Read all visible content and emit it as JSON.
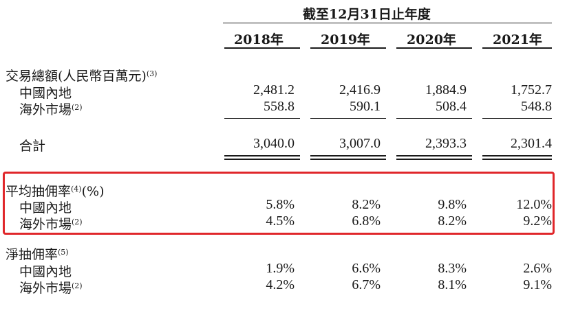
{
  "header": {
    "period_title": "截至12月31日止年度",
    "years": [
      "2018年",
      "2019年",
      "2020年",
      "2021年"
    ]
  },
  "sections": [
    {
      "title": "交易總額(人民幣百萬元)",
      "note": "(3)",
      "rows": [
        {
          "label": "中國內地",
          "note": "",
          "values": [
            "2,481.2",
            "2,416.9",
            "1,884.9",
            "1,752.7"
          ]
        },
        {
          "label": "海外市場",
          "note": "(2)",
          "values": [
            "558.8",
            "590.1",
            "508.4",
            "548.8"
          ]
        }
      ],
      "total": {
        "label": "合計",
        "values": [
          "3,040.0",
          "3,007.0",
          "2,393.3",
          "2,301.4"
        ]
      }
    },
    {
      "title": "平均抽佣率",
      "note": "(4)",
      "title_suffix": "(%)",
      "rows": [
        {
          "label": "中國內地",
          "note": "",
          "values": [
            "5.8%",
            "8.2%",
            "9.8%",
            "12.0%"
          ]
        },
        {
          "label": "海外市場",
          "note": "(2)",
          "values": [
            "4.5%",
            "6.8%",
            "8.2%",
            "9.2%"
          ]
        }
      ]
    },
    {
      "title": "淨抽佣率",
      "note": "(5)",
      "rows": [
        {
          "label": "中國內地",
          "note": "",
          "values": [
            "1.9%",
            "6.6%",
            "8.3%",
            "2.6%"
          ]
        },
        {
          "label": "海外市場",
          "note": "(2)",
          "values": [
            "4.2%",
            "6.7%",
            "8.1%",
            "9.1%"
          ]
        }
      ]
    }
  ],
  "partial_next_section": "",
  "highlight_color": "#e0262a"
}
